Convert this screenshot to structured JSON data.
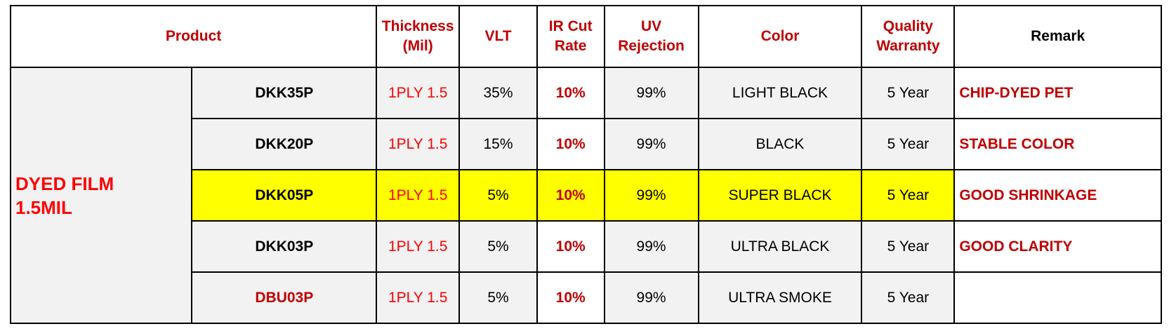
{
  "headers": {
    "product": "Product",
    "thickness_l1": "Thickness",
    "thickness_l2": "(Mil)",
    "vlt": "VLT",
    "ir_l1": "IR Cut",
    "ir_l2": "Rate",
    "uv_l1": "UV",
    "uv_l2": "Rejection",
    "color": "Color",
    "warranty_l1": "Quality",
    "warranty_l2": "Warranty",
    "remark": "Remark"
  },
  "group": {
    "line1": "DYED FILM",
    "line2": "1.5MIL"
  },
  "rows": [
    {
      "model": "DKK35P",
      "thickness": "1PLY 1.5",
      "vlt": "35%",
      "ir": "10%",
      "uv": "99%",
      "color": "LIGHT BLACK",
      "warranty": "5 Year",
      "remark": "CHIP-DYED PET"
    },
    {
      "model": "DKK20P",
      "thickness": "1PLY 1.5",
      "vlt": "15%",
      "ir": "10%",
      "uv": "99%",
      "color": "BLACK",
      "warranty": "5 Year",
      "remark": "STABLE COLOR"
    },
    {
      "model": "DKK05P",
      "thickness": "1PLY 1.5",
      "vlt": "5%",
      "ir": "10%",
      "uv": "99%",
      "color": "SUPER BLACK",
      "warranty": "5 Year",
      "remark": "GOOD SHRINKAGE"
    },
    {
      "model": "DKK03P",
      "thickness": "1PLY 1.5",
      "vlt": "5%",
      "ir": "10%",
      "uv": "99%",
      "color": "ULTRA BLACK",
      "warranty": "5 Year",
      "remark": "GOOD CLARITY"
    },
    {
      "model": "DBU03P",
      "thickness": "1PLY 1.5",
      "vlt": "5%",
      "ir": "10%",
      "uv": "99%",
      "color": "ULTRA SMOKE",
      "warranty": "5 Year",
      "remark": ""
    }
  ],
  "highlight_row_color": "#ffff00",
  "accent_red": "#c00000"
}
